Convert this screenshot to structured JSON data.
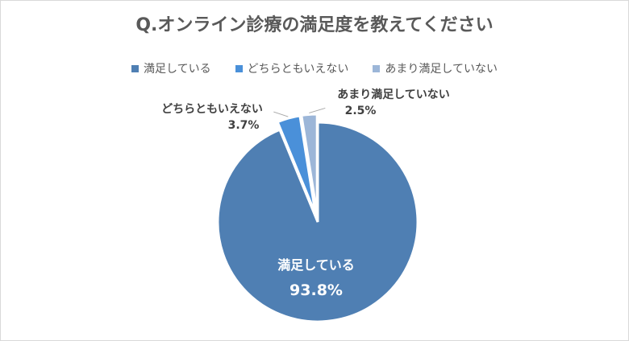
{
  "chart_data": {
    "type": "pie",
    "title": "Q.オンライン診療の満足度を教えてください",
    "legend_position": "top",
    "slices": [
      {
        "label": "満足している",
        "value": 93.8,
        "display": "93.8%",
        "color": "#4f7fb3"
      },
      {
        "label": "どちらともいえない",
        "value": 3.7,
        "display": "3.7%",
        "color": "#4a90d9"
      },
      {
        "label": "あまり満足していない",
        "value": 2.5,
        "display": "2.5%",
        "color": "#9cb6d8"
      }
    ]
  }
}
